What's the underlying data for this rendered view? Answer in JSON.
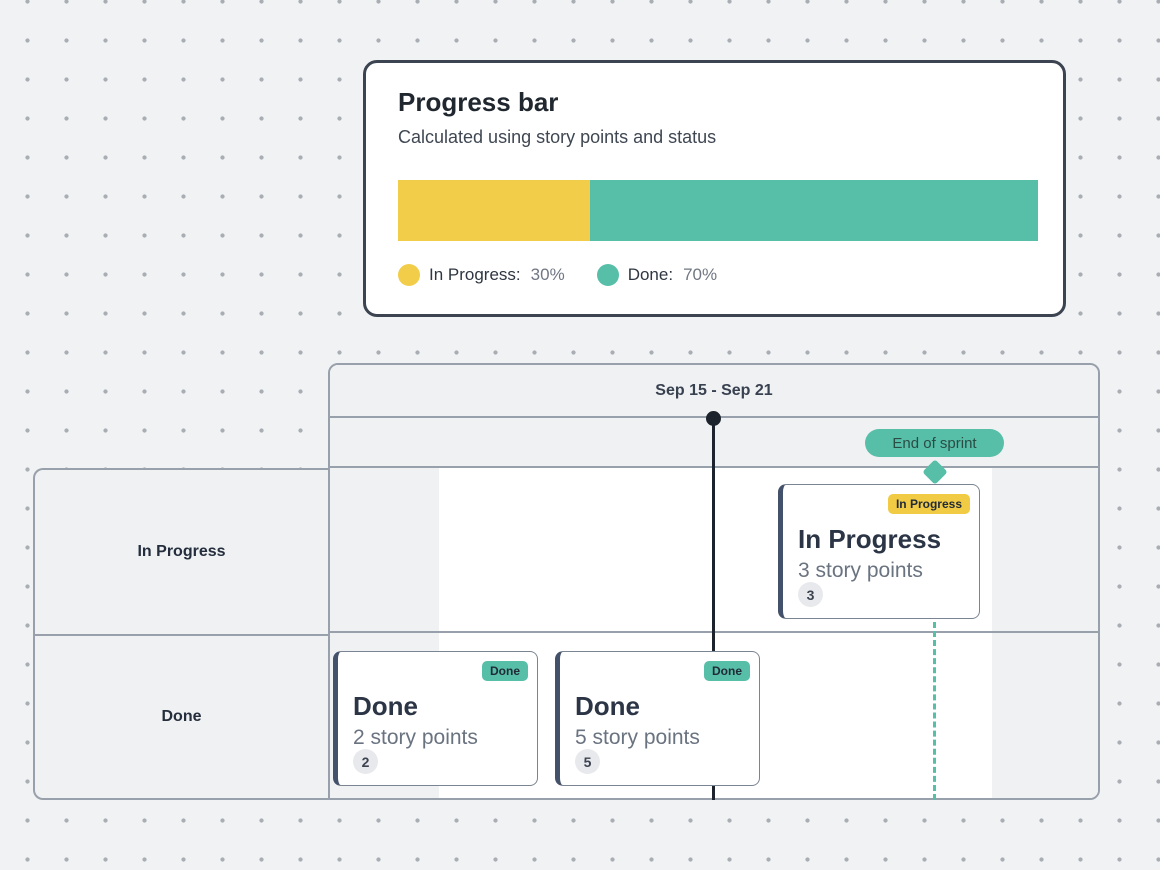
{
  "progress_card": {
    "title": "Progress bar",
    "subtitle": "Calculated using story points and status",
    "bar": {
      "segments": [
        {
          "name": "In Progress",
          "percent": 30,
          "color": "#F2CD4A"
        },
        {
          "name": "Done",
          "percent": 70,
          "color": "#57BEA8"
        }
      ]
    },
    "legend": [
      {
        "label": "In Progress:",
        "value": "30%",
        "color": "#F2CD4A"
      },
      {
        "label": "Done:",
        "value": "70%",
        "color": "#57BEA8"
      }
    ]
  },
  "timeline": {
    "header": "Sep 15 - Sep 21",
    "end_marker": {
      "label": "End of sprint",
      "color": "#57BEA8"
    },
    "lanes": [
      {
        "label": "In Progress",
        "cards": [
          {
            "badge": "In Progress",
            "badge_color": "#F1CB44",
            "title": "In Progress",
            "subtitle": "3 story points",
            "points": "3"
          }
        ]
      },
      {
        "label": "Done",
        "cards": [
          {
            "badge": "Done",
            "badge_color": "#57BEA8",
            "title": "Done",
            "subtitle": "2 story points",
            "points": "2"
          },
          {
            "badge": "Done",
            "badge_color": "#57BEA8",
            "title": "Done",
            "subtitle": "5 story points",
            "points": "5"
          }
        ]
      }
    ]
  },
  "colors": {
    "in_progress": "#F2CD4A",
    "done": "#57BEA8",
    "marker": "#1D232C",
    "table_border": "#98A0AB",
    "canvas_bg": "#F1F2F4"
  }
}
